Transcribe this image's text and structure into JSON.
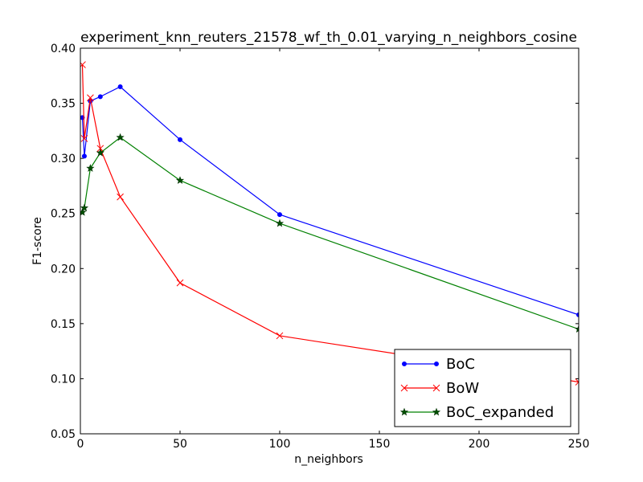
{
  "chart_data": {
    "type": "line",
    "title": "experiment_knn_reuters_21578_wf_th_0.01_varying_n_neighbors_cosine",
    "xlabel": "n_neighbors",
    "ylabel": "F1-score",
    "xlim": [
      0,
      250
    ],
    "ylim": [
      0.05,
      0.4
    ],
    "x_ticks": [
      0,
      50,
      100,
      150,
      200,
      250
    ],
    "x_tick_labels": [
      "0",
      "50",
      "100",
      "150",
      "200",
      "250"
    ],
    "y_ticks": [
      0.05,
      0.1,
      0.15,
      0.2,
      0.25,
      0.3,
      0.35,
      0.4
    ],
    "y_tick_labels": [
      "0.05",
      "0.10",
      "0.15",
      "0.20",
      "0.25",
      "0.30",
      "0.35",
      "0.40"
    ],
    "grid": false,
    "legend_position": "lower-right",
    "series": [
      {
        "name": "BoC",
        "color": "#0000ff",
        "marker": "dot",
        "x": [
          1,
          2,
          5,
          10,
          20,
          50,
          100,
          250
        ],
        "y": [
          0.337,
          0.302,
          0.352,
          0.356,
          0.365,
          0.317,
          0.249,
          0.158
        ]
      },
      {
        "name": "BoW",
        "color": "#ff0000",
        "marker": "x",
        "x": [
          1,
          2,
          5,
          10,
          20,
          50,
          100,
          250
        ],
        "y": [
          0.385,
          0.318,
          0.355,
          0.309,
          0.265,
          0.187,
          0.139,
          0.097
        ]
      },
      {
        "name": "BoC_expanded",
        "color": "#008000",
        "marker": "star",
        "x": [
          1,
          2,
          5,
          10,
          20,
          50,
          100,
          250
        ],
        "y": [
          0.251,
          0.255,
          0.291,
          0.305,
          0.319,
          0.28,
          0.241,
          0.145
        ]
      }
    ]
  }
}
